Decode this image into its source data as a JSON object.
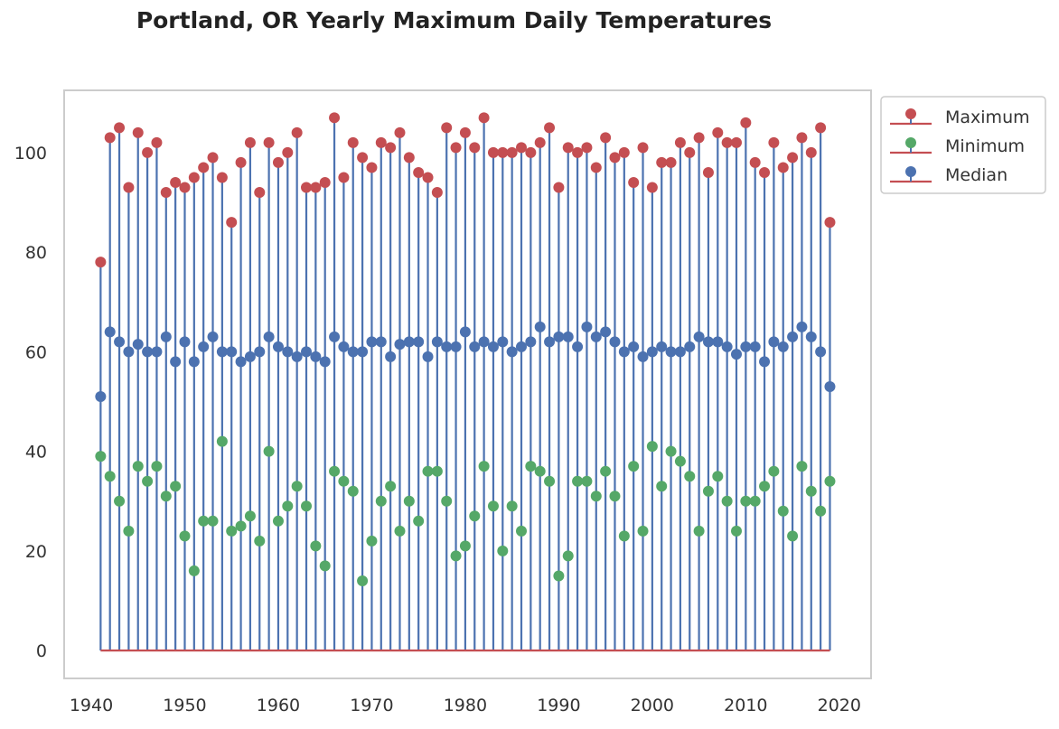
{
  "chart_data": {
    "type": "stem",
    "title": "Portland, OR Yearly Maximum Daily Temperatures",
    "xlabel": "",
    "ylabel": "",
    "xlim": [
      1937.1,
      2023.4
    ],
    "ylim": [
      -5.6,
      112.5
    ],
    "xticks": [
      "1940",
      "1950",
      "1960",
      "1970",
      "1980",
      "1990",
      "2000",
      "2010",
      "2020"
    ],
    "yticks": [
      "0",
      "20",
      "40",
      "60",
      "80",
      "100"
    ],
    "grid": false,
    "legend_position": "outside-top-right",
    "x": [
      1941,
      1942,
      1943,
      1944,
      1945,
      1946,
      1947,
      1948,
      1949,
      1950,
      1951,
      1952,
      1953,
      1954,
      1955,
      1956,
      1957,
      1958,
      1959,
      1960,
      1961,
      1962,
      1963,
      1964,
      1965,
      1966,
      1967,
      1968,
      1969,
      1970,
      1971,
      1972,
      1973,
      1974,
      1975,
      1976,
      1977,
      1978,
      1979,
      1980,
      1981,
      1982,
      1983,
      1984,
      1985,
      1986,
      1987,
      1988,
      1989,
      1990,
      1991,
      1992,
      1993,
      1994,
      1995,
      1996,
      1997,
      1998,
      1999,
      2000,
      2001,
      2002,
      2003,
      2004,
      2005,
      2006,
      2007,
      2008,
      2009,
      2010,
      2011,
      2012,
      2013,
      2014,
      2015,
      2016,
      2017,
      2018,
      2019
    ],
    "series": [
      {
        "name": "Maximum",
        "color": "#c44e52",
        "values": [
          78,
          103,
          105,
          93,
          104,
          100,
          102,
          92,
          94,
          93,
          95,
          97,
          99,
          95,
          86,
          98,
          102,
          92,
          102,
          98,
          100,
          104,
          93,
          93,
          94,
          107,
          95,
          102,
          99,
          97,
          102,
          101,
          104,
          99,
          96,
          95,
          92,
          105,
          101,
          104,
          101,
          107,
          100,
          100,
          100,
          101,
          100,
          102,
          105,
          93,
          101,
          100,
          101,
          97,
          103,
          99,
          100,
          94,
          101,
          93,
          98,
          98,
          102,
          100,
          103,
          96,
          104,
          102,
          102,
          106,
          98,
          96,
          102,
          97,
          99,
          103,
          100,
          105,
          86
        ]
      },
      {
        "name": "Minimum",
        "color": "#55a868",
        "values": [
          39,
          35,
          30,
          24,
          37,
          34,
          37,
          31,
          33,
          23,
          16,
          26,
          26,
          42,
          24,
          25,
          27,
          22,
          40,
          26,
          29,
          33,
          29,
          21,
          17,
          36,
          34,
          32,
          14,
          22,
          30,
          33,
          24,
          30,
          26,
          36,
          36,
          30,
          19,
          21,
          27,
          37,
          29,
          20,
          29,
          24,
          37,
          36,
          34,
          15,
          19,
          34,
          34,
          31,
          36,
          31,
          23,
          37,
          24,
          41,
          33,
          40,
          38,
          35,
          24,
          32,
          35,
          30,
          24,
          30,
          30,
          33,
          36,
          28,
          23,
          37,
          32,
          28,
          34
        ]
      },
      {
        "name": "Median",
        "color": "#4c72b0",
        "values": [
          51,
          64,
          62,
          60,
          61.5,
          60,
          60,
          63,
          58,
          62,
          58,
          61,
          63,
          60,
          60,
          58,
          59,
          60,
          63,
          61,
          60,
          59,
          60,
          59,
          58,
          63,
          61,
          60,
          60,
          62,
          62,
          59,
          61.5,
          62,
          62,
          59,
          62,
          61,
          61,
          64,
          61,
          62,
          61,
          62,
          60,
          61,
          62,
          65,
          62,
          63,
          63,
          61,
          65,
          63,
          64,
          62,
          60,
          61,
          59,
          60,
          61,
          60,
          60,
          61,
          63,
          62,
          62,
          61,
          59.5,
          61,
          61,
          58,
          62,
          61,
          63,
          65,
          63,
          60,
          53
        ]
      }
    ]
  }
}
